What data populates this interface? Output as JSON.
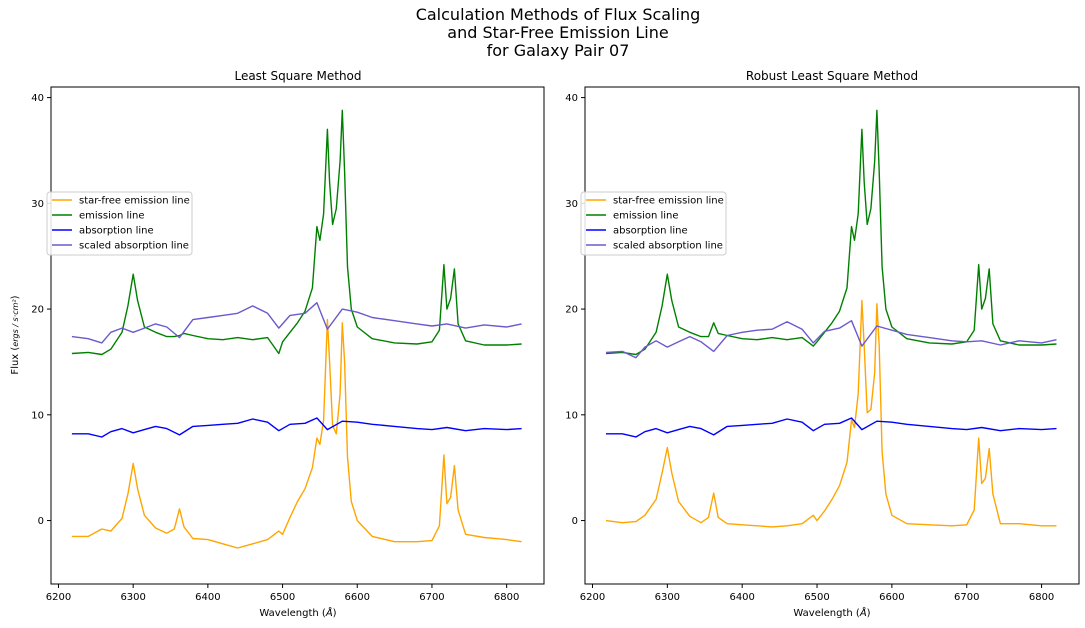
{
  "figure": {
    "suptitle_lines": [
      "Calculation Methods of Flux Scaling",
      "and Star-Free Emission Line",
      "for Galaxy Pair 07"
    ]
  },
  "chart_data": [
    {
      "type": "line",
      "title": "Least Square Method",
      "xlabel": "Wavelength (Å)",
      "ylabel": "Flux (ergs / s·cm²)",
      "xlim": [
        6190,
        6850
      ],
      "ylim": [
        -6,
        41
      ],
      "xticks": [
        "6200",
        "6300",
        "6400",
        "6500",
        "6600",
        "6700",
        "6800"
      ],
      "yticks": [
        "0",
        "10",
        "20",
        "30",
        "40"
      ],
      "grid": false,
      "legend_position": "center-left",
      "series": [
        {
          "name": "star-free emission line",
          "color": "#ffa500",
          "x": [
            6218,
            6240,
            6258,
            6270,
            6285,
            6293,
            6300,
            6306,
            6315,
            6330,
            6345,
            6355,
            6362,
            6368,
            6380,
            6400,
            6420,
            6440,
            6460,
            6480,
            6495,
            6500,
            6510,
            6520,
            6530,
            6540,
            6546,
            6550,
            6555,
            6560,
            6563,
            6567,
            6572,
            6577,
            6580,
            6583,
            6587,
            6592,
            6600,
            6620,
            6650,
            6680,
            6700,
            6710,
            6716,
            6720,
            6725,
            6730,
            6735,
            6745,
            6770,
            6800,
            6820
          ],
          "y": [
            -1.5,
            -1.5,
            -0.8,
            -1.0,
            0.2,
            2.5,
            5.4,
            3.0,
            0.5,
            -0.7,
            -1.2,
            -0.8,
            1.1,
            -0.6,
            -1.7,
            -1.8,
            -2.2,
            -2.6,
            -2.2,
            -1.8,
            -1.0,
            -1.3,
            0.3,
            1.8,
            3.0,
            5.0,
            7.8,
            7.2,
            9.5,
            19.0,
            15.0,
            9.0,
            8.2,
            12.0,
            18.7,
            15.0,
            6.0,
            1.8,
            0.0,
            -1.5,
            -2.0,
            -2.0,
            -1.9,
            -0.5,
            6.2,
            1.6,
            2.2,
            5.2,
            1.0,
            -1.3,
            -1.6,
            -1.8,
            -2.0
          ]
        },
        {
          "name": "emission line",
          "color": "#008000",
          "x": [
            6218,
            6240,
            6258,
            6270,
            6285,
            6293,
            6300,
            6306,
            6315,
            6330,
            6345,
            6355,
            6362,
            6368,
            6380,
            6400,
            6420,
            6440,
            6460,
            6480,
            6495,
            6500,
            6510,
            6520,
            6530,
            6540,
            6546,
            6550,
            6555,
            6560,
            6563,
            6567,
            6572,
            6577,
            6580,
            6583,
            6587,
            6592,
            6600,
            6620,
            6650,
            6680,
            6700,
            6710,
            6716,
            6720,
            6725,
            6730,
            6735,
            6745,
            6770,
            6800,
            6820
          ],
          "y": [
            15.8,
            15.9,
            15.7,
            16.2,
            17.8,
            20.3,
            23.3,
            20.8,
            18.3,
            17.8,
            17.4,
            17.4,
            17.5,
            17.7,
            17.5,
            17.2,
            17.1,
            17.3,
            17.1,
            17.3,
            15.8,
            16.9,
            17.8,
            18.7,
            19.8,
            22.0,
            27.8,
            26.5,
            29.0,
            37.0,
            32.0,
            28.0,
            29.5,
            34.0,
            38.8,
            33.0,
            24.0,
            20.0,
            18.3,
            17.2,
            16.8,
            16.7,
            16.9,
            18.0,
            24.2,
            20.0,
            21.0,
            23.8,
            18.6,
            17.0,
            16.6,
            16.6,
            16.7
          ]
        },
        {
          "name": "absorption line",
          "color": "#0000ff",
          "x": [
            6218,
            6240,
            6258,
            6270,
            6285,
            6300,
            6315,
            6330,
            6345,
            6362,
            6380,
            6400,
            6420,
            6440,
            6460,
            6480,
            6495,
            6510,
            6530,
            6546,
            6560,
            6580,
            6600,
            6620,
            6650,
            6680,
            6700,
            6720,
            6745,
            6770,
            6800,
            6820
          ],
          "y": [
            8.2,
            8.2,
            7.9,
            8.4,
            8.7,
            8.3,
            8.6,
            8.9,
            8.7,
            8.1,
            8.9,
            9.0,
            9.1,
            9.2,
            9.6,
            9.3,
            8.5,
            9.1,
            9.2,
            9.7,
            8.6,
            9.4,
            9.3,
            9.1,
            8.9,
            8.7,
            8.6,
            8.8,
            8.5,
            8.7,
            8.6,
            8.7
          ]
        },
        {
          "name": "scaled absorption line",
          "color": "#6a5acd",
          "x": [
            6218,
            6240,
            6258,
            6270,
            6285,
            6300,
            6315,
            6330,
            6345,
            6362,
            6380,
            6400,
            6420,
            6440,
            6460,
            6480,
            6495,
            6510,
            6530,
            6546,
            6560,
            6580,
            6600,
            6620,
            6650,
            6680,
            6700,
            6720,
            6745,
            6770,
            6800,
            6820
          ],
          "y": [
            17.4,
            17.2,
            16.8,
            17.8,
            18.2,
            17.8,
            18.2,
            18.6,
            18.3,
            17.3,
            19.0,
            19.2,
            19.4,
            19.6,
            20.3,
            19.6,
            18.2,
            19.4,
            19.6,
            20.6,
            18.1,
            20.0,
            19.7,
            19.2,
            18.9,
            18.6,
            18.4,
            18.6,
            18.2,
            18.5,
            18.3,
            18.6
          ]
        }
      ]
    },
    {
      "type": "line",
      "title": "Robust Least Square Method",
      "xlabel": "Wavelength (Å)",
      "ylabel": "",
      "xlim": [
        6190,
        6850
      ],
      "ylim": [
        -6,
        41
      ],
      "xticks": [
        "6200",
        "6300",
        "6400",
        "6500",
        "6600",
        "6700",
        "6800"
      ],
      "yticks": [
        "0",
        "10",
        "20",
        "30",
        "40"
      ],
      "grid": false,
      "legend_position": "center-left",
      "series": [
        {
          "name": "star-free emission line",
          "color": "#ffa500",
          "x": [
            6218,
            6240,
            6258,
            6270,
            6285,
            6293,
            6300,
            6306,
            6315,
            6330,
            6345,
            6355,
            6362,
            6368,
            6380,
            6400,
            6420,
            6440,
            6460,
            6480,
            6495,
            6500,
            6510,
            6520,
            6530,
            6540,
            6546,
            6550,
            6555,
            6560,
            6563,
            6567,
            6572,
            6577,
            6580,
            6583,
            6587,
            6592,
            6600,
            6620,
            6650,
            6680,
            6700,
            6710,
            6716,
            6720,
            6725,
            6730,
            6735,
            6745,
            6770,
            6800,
            6820
          ],
          "y": [
            0.0,
            -0.2,
            -0.1,
            0.5,
            2.0,
            4.5,
            6.9,
            4.5,
            1.8,
            0.4,
            -0.2,
            0.3,
            2.6,
            0.3,
            -0.3,
            -0.4,
            -0.5,
            -0.6,
            -0.5,
            -0.3,
            0.5,
            0.0,
            0.9,
            2.0,
            3.3,
            5.5,
            9.5,
            8.8,
            12.0,
            20.8,
            16.5,
            10.2,
            10.5,
            14.0,
            20.5,
            16.5,
            6.5,
            2.5,
            0.5,
            -0.3,
            -0.4,
            -0.5,
            -0.4,
            1.0,
            7.8,
            3.5,
            4.0,
            6.8,
            2.5,
            -0.3,
            -0.3,
            -0.5,
            -0.5
          ]
        },
        {
          "name": "emission line",
          "color": "#008000",
          "x": [
            6218,
            6240,
            6258,
            6270,
            6285,
            6293,
            6300,
            6306,
            6315,
            6330,
            6345,
            6355,
            6362,
            6368,
            6380,
            6400,
            6420,
            6440,
            6460,
            6480,
            6495,
            6500,
            6510,
            6520,
            6530,
            6540,
            6546,
            6550,
            6555,
            6560,
            6563,
            6567,
            6572,
            6577,
            6580,
            6583,
            6587,
            6592,
            6600,
            6620,
            6650,
            6680,
            6700,
            6710,
            6716,
            6720,
            6725,
            6730,
            6735,
            6745,
            6770,
            6800,
            6820
          ],
          "y": [
            15.8,
            15.9,
            15.7,
            16.2,
            17.8,
            20.3,
            23.3,
            20.8,
            18.3,
            17.8,
            17.4,
            17.4,
            18.7,
            17.7,
            17.5,
            17.2,
            17.1,
            17.3,
            17.1,
            17.3,
            16.5,
            16.9,
            17.8,
            18.7,
            19.8,
            22.0,
            27.8,
            26.5,
            29.0,
            37.0,
            32.0,
            28.0,
            29.5,
            34.0,
            38.8,
            33.0,
            24.0,
            20.0,
            18.3,
            17.2,
            16.8,
            16.7,
            16.9,
            18.0,
            24.2,
            20.0,
            21.0,
            23.8,
            18.6,
            17.0,
            16.6,
            16.6,
            16.7
          ]
        },
        {
          "name": "absorption line",
          "color": "#0000ff",
          "x": [
            6218,
            6240,
            6258,
            6270,
            6285,
            6300,
            6315,
            6330,
            6345,
            6362,
            6380,
            6400,
            6420,
            6440,
            6460,
            6480,
            6495,
            6510,
            6530,
            6546,
            6560,
            6580,
            6600,
            6620,
            6650,
            6680,
            6700,
            6720,
            6745,
            6770,
            6800,
            6820
          ],
          "y": [
            8.2,
            8.2,
            7.9,
            8.4,
            8.7,
            8.3,
            8.6,
            8.9,
            8.7,
            8.1,
            8.9,
            9.0,
            9.1,
            9.2,
            9.6,
            9.3,
            8.5,
            9.1,
            9.2,
            9.7,
            8.6,
            9.4,
            9.3,
            9.1,
            8.9,
            8.7,
            8.6,
            8.8,
            8.5,
            8.7,
            8.6,
            8.7
          ]
        },
        {
          "name": "scaled absorption line",
          "color": "#6a5acd",
          "x": [
            6218,
            6240,
            6258,
            6270,
            6285,
            6300,
            6315,
            6330,
            6345,
            6362,
            6380,
            6400,
            6420,
            6440,
            6460,
            6480,
            6495,
            6510,
            6530,
            6546,
            6560,
            6580,
            6600,
            6620,
            6650,
            6680,
            6700,
            6720,
            6745,
            6770,
            6800,
            6820
          ],
          "y": [
            15.9,
            16.0,
            15.4,
            16.4,
            17.0,
            16.4,
            16.9,
            17.4,
            16.9,
            16.0,
            17.5,
            17.8,
            18.0,
            18.1,
            18.8,
            18.1,
            16.8,
            17.9,
            18.2,
            18.9,
            16.5,
            18.4,
            18.0,
            17.6,
            17.3,
            17.0,
            16.9,
            17.0,
            16.6,
            17.0,
            16.8,
            17.1
          ]
        }
      ]
    }
  ]
}
